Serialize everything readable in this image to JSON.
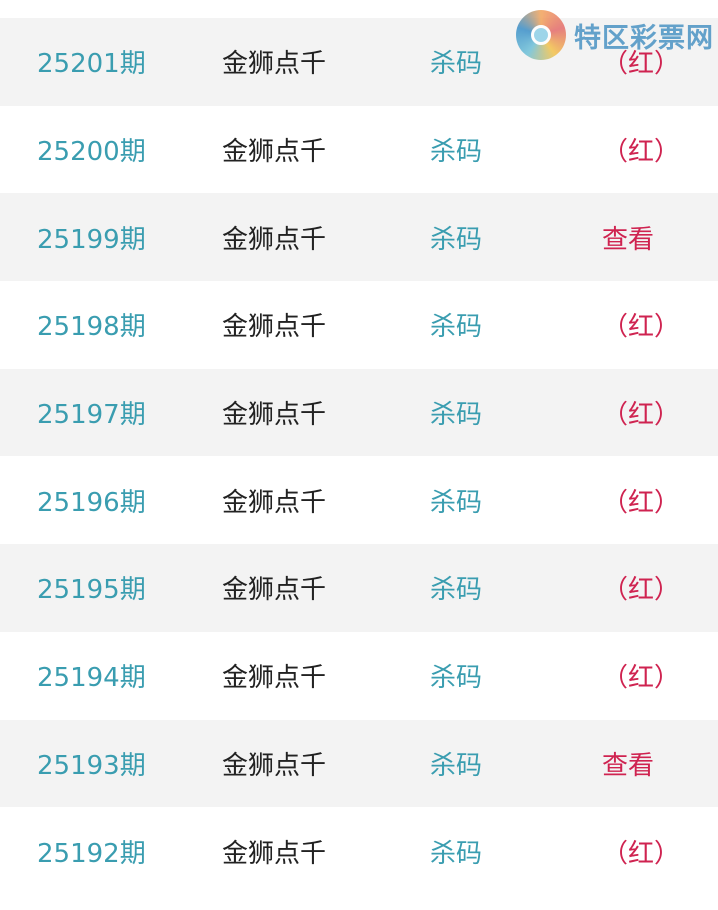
{
  "watermark": {
    "brand": "特区彩票网"
  },
  "rows": [
    {
      "issue": "25201期",
      "name": "金狮点千",
      "type": "杀码",
      "result": "（红）"
    },
    {
      "issue": "25200期",
      "name": "金狮点千",
      "type": "杀码",
      "result": "（红）"
    },
    {
      "issue": "25199期",
      "name": "金狮点千",
      "type": "杀码",
      "result": "查看"
    },
    {
      "issue": "25198期",
      "name": "金狮点千",
      "type": "杀码",
      "result": "（红）"
    },
    {
      "issue": "25197期",
      "name": "金狮点千",
      "type": "杀码",
      "result": "（红）"
    },
    {
      "issue": "25196期",
      "name": "金狮点千",
      "type": "杀码",
      "result": "（红）"
    },
    {
      "issue": "25195期",
      "name": "金狮点千",
      "type": "杀码",
      "result": "（红）"
    },
    {
      "issue": "25194期",
      "name": "金狮点千",
      "type": "杀码",
      "result": "（红）"
    },
    {
      "issue": "25193期",
      "name": "金狮点千",
      "type": "杀码",
      "result": "查看"
    },
    {
      "issue": "25192期",
      "name": "金狮点千",
      "type": "杀码",
      "result": "（红）"
    }
  ],
  "colors": {
    "issue": "#3a9db0",
    "type": "#3a9db0",
    "result": "#cf2350",
    "row_alt": "#f3f3f3"
  }
}
